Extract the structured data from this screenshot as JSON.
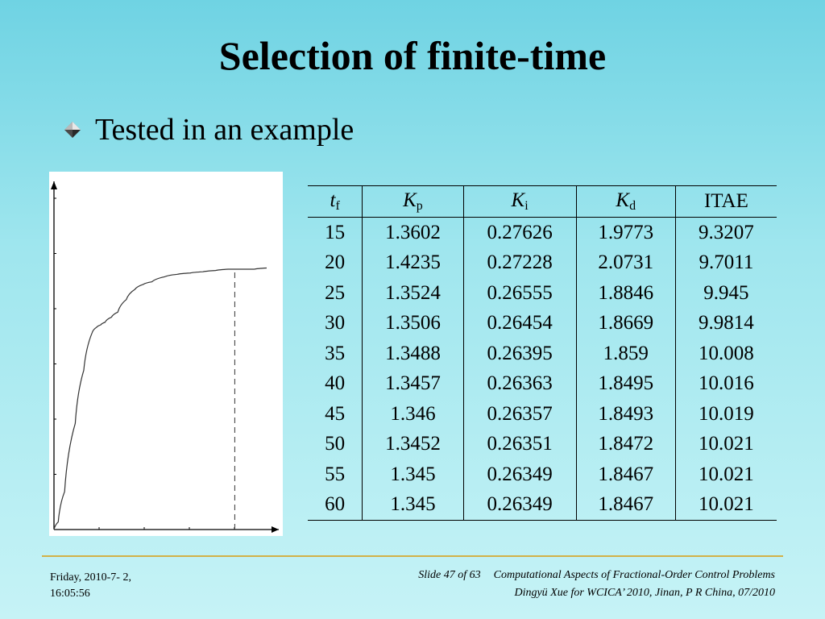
{
  "slide": {
    "title": "Selection of finite-time",
    "bullet": "Tested in an example"
  },
  "table": {
    "headers": {
      "tf": {
        "main": "t",
        "sub": "f"
      },
      "kp": {
        "main": "K",
        "sub": "p"
      },
      "ki": {
        "main": "K",
        "sub": "i"
      },
      "kd": {
        "main": "K",
        "sub": "d"
      },
      "itae": "ITAE"
    },
    "rows": [
      [
        "15",
        "1.3602",
        "0.27626",
        "1.9773",
        "9.3207"
      ],
      [
        "20",
        "1.4235",
        "0.27228",
        "2.0731",
        "9.7011"
      ],
      [
        "25",
        "1.3524",
        "0.26555",
        "1.8846",
        "9.945"
      ],
      [
        "30",
        "1.3506",
        "0.26454",
        "1.8669",
        "9.9814"
      ],
      [
        "35",
        "1.3488",
        "0.26395",
        "1.859",
        "10.008"
      ],
      [
        "40",
        "1.3457",
        "0.26363",
        "1.8495",
        "10.016"
      ],
      [
        "45",
        "1.346",
        "0.26357",
        "1.8493",
        "10.019"
      ],
      [
        "50",
        "1.3452",
        "0.26351",
        "1.8472",
        "10.021"
      ],
      [
        "55",
        "1.345",
        "0.26349",
        "1.8467",
        "10.021"
      ],
      [
        "60",
        "1.345",
        "0.26349",
        "1.8467",
        "10.021"
      ]
    ]
  },
  "chart_data": {
    "type": "line",
    "title": "",
    "xlabel": "",
    "ylabel": "",
    "tick_labels": "none",
    "series": [
      {
        "x": [
          0,
          0.02,
          0.05,
          0.1,
          0.14,
          0.18,
          0.2,
          0.22,
          0.24,
          0.27,
          0.3,
          0.34,
          0.38,
          0.42,
          0.46,
          0.52,
          0.58,
          0.64,
          0.7,
          0.76,
          0.82,
          0.88,
          0.94,
          1.0
        ],
        "y": [
          0,
          0.03,
          0.15,
          0.42,
          0.63,
          0.78,
          0.8,
          0.81,
          0.82,
          0.84,
          0.86,
          0.91,
          0.95,
          0.97,
          0.98,
          1.0,
          1.01,
          1.015,
          1.02,
          1.025,
          1.03,
          1.03,
          1.03,
          1.035
        ]
      }
    ],
    "reference_marker_x": 0.85,
    "xlim": [
      0,
      1.1
    ],
    "ylim": [
      0,
      1.0
    ],
    "grid": false
  },
  "footer": {
    "date_line": "Friday,  2010-7- 2,",
    "time_line": "16:05:56",
    "slide_number": "Slide 47 of 63",
    "course_title": "Computational Aspects of Fractional-Order Control Problems",
    "author_line": "Dingyü Xue for WCICA’ 2010, Jinan, P R China, 07/2010"
  },
  "colors": {
    "background_top": "#6fd3e3",
    "background_bottom": "#c6f3f6",
    "footer_rule": "#d2b248"
  },
  "icons": {
    "bullet": "diamond-bullet-icon"
  }
}
